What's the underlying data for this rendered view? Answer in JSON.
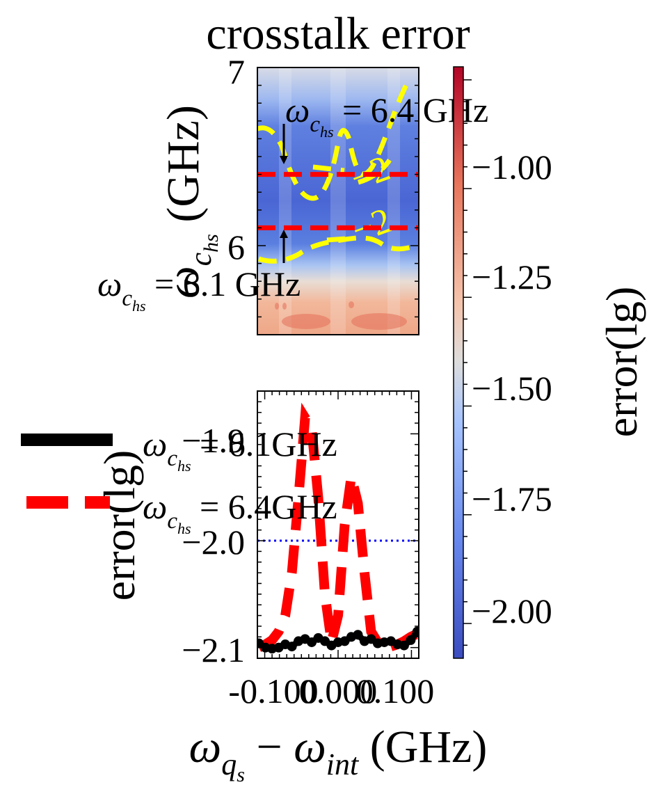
{
  "chart_data": [
    {
      "type": "heatmap",
      "title": "crosstalk error",
      "ylabel": "ω_{c_hs} (GHz)",
      "ylim": [
        5.5,
        7.0
      ],
      "yticks": [
        "7",
        "6"
      ],
      "cmap": "coolwarm",
      "colorbar": {
        "label": "error(lg)",
        "range": [
          -2.08,
          -0.72
        ],
        "ticks": [
          "−1.00",
          "−1.25",
          "−1.50",
          "−1.75",
          "−2.00"
        ]
      },
      "hlines": [
        {
          "y": 6.4,
          "color": "#ff0000",
          "style": "dashed"
        },
        {
          "y": 6.1,
          "color": "#ff0000",
          "style": "dashed"
        }
      ],
      "contour_color": "#ffff00",
      "contour_labels": [
        "−2",
        "−2"
      ],
      "annotations": [
        {
          "text_math": "ω",
          "text_sub": "c",
          "text_sub2": "hs",
          "text_rest": " = 6.4 GHz",
          "y": 6.4
        },
        {
          "text_math": "ω",
          "text_sub": "c",
          "text_sub2": "hs",
          "text_rest": " = 6.1 GHz",
          "y": 6.1
        }
      ]
    },
    {
      "type": "line",
      "ylabel": "error(lg)",
      "xlabel": "ω_{q_s} − ω_{int} (GHz)",
      "xlim": [
        -0.11,
        0.11
      ],
      "xticks": [
        "-0.100",
        "0.000",
        "0.100"
      ],
      "ylim": [
        -2.11,
        -1.86
      ],
      "yticks": [
        "−1.9",
        "−2.0",
        "−2.1"
      ],
      "threshold": {
        "y": -2.0,
        "color": "#0000ff",
        "style": "dotted"
      },
      "x": [
        -0.108,
        -0.099,
        -0.09,
        -0.081,
        -0.072,
        -0.063,
        -0.054,
        -0.045,
        -0.036,
        -0.027,
        -0.018,
        -0.009,
        0.0,
        0.009,
        0.018,
        0.027,
        0.036,
        0.045,
        0.054,
        0.063,
        0.072,
        0.081,
        0.09,
        0.099,
        0.108
      ],
      "series": [
        {
          "name": "ω_{c_hs} = 6.1GHz",
          "color": "#000000",
          "style": "solid",
          "values": [
            -2.096,
            -2.1,
            -2.101,
            -2.1,
            -2.097,
            -2.099,
            -2.094,
            -2.092,
            -2.095,
            -2.091,
            -2.094,
            -2.098,
            -2.095,
            -2.094,
            -2.09,
            -2.088,
            -2.094,
            -2.092,
            -2.096,
            -2.095,
            -2.094,
            -2.097,
            -2.098,
            -2.093,
            -2.085
          ]
        },
        {
          "name": "ω_{c_hs} = 6.4GHz",
          "color": "#ff0000",
          "style": "dashed",
          "values": [
            -2.1,
            -2.097,
            -2.093,
            -2.085,
            -2.07,
            -2.03,
            -1.96,
            -1.885,
            -1.895,
            -1.96,
            -2.05,
            -2.095,
            -2.07,
            -1.985,
            -1.94,
            -1.965,
            -2.03,
            -2.085,
            -2.095,
            -2.098,
            -2.099,
            -2.097,
            -2.094,
            -2.09,
            -2.087
          ]
        }
      ]
    }
  ]
}
